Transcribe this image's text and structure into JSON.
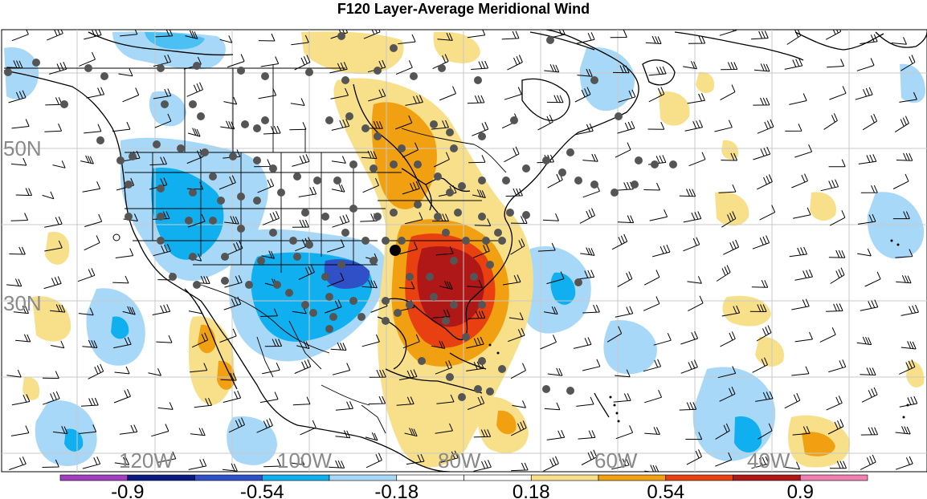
{
  "title": "F120 Layer-Average Meridional Wind",
  "lat_labels": [
    "50N",
    "30N"
  ],
  "lon_labels": [
    "120W",
    "100W",
    "80W",
    "60W",
    "40W"
  ],
  "colorbar": {
    "colors": [
      "#a040c0",
      "#0a1a80",
      "#3050c8",
      "#10b0f0",
      "#a8d8f8",
      "#ffffff",
      "#ffffff",
      "#f8e08a",
      "#f0a010",
      "#e84010",
      "#b01818",
      "#f080b0"
    ],
    "tick_labels": [
      "-0.9",
      "-0.54",
      "-0.18",
      "0.18",
      "0.54",
      "0.9"
    ],
    "tick_indices": [
      1,
      3,
      5,
      7,
      9,
      11
    ]
  },
  "colors": {
    "dot": "#555555",
    "ocean": "#ffffff",
    "grid": "#c8c8c8",
    "label": "#8a8a8a"
  }
}
